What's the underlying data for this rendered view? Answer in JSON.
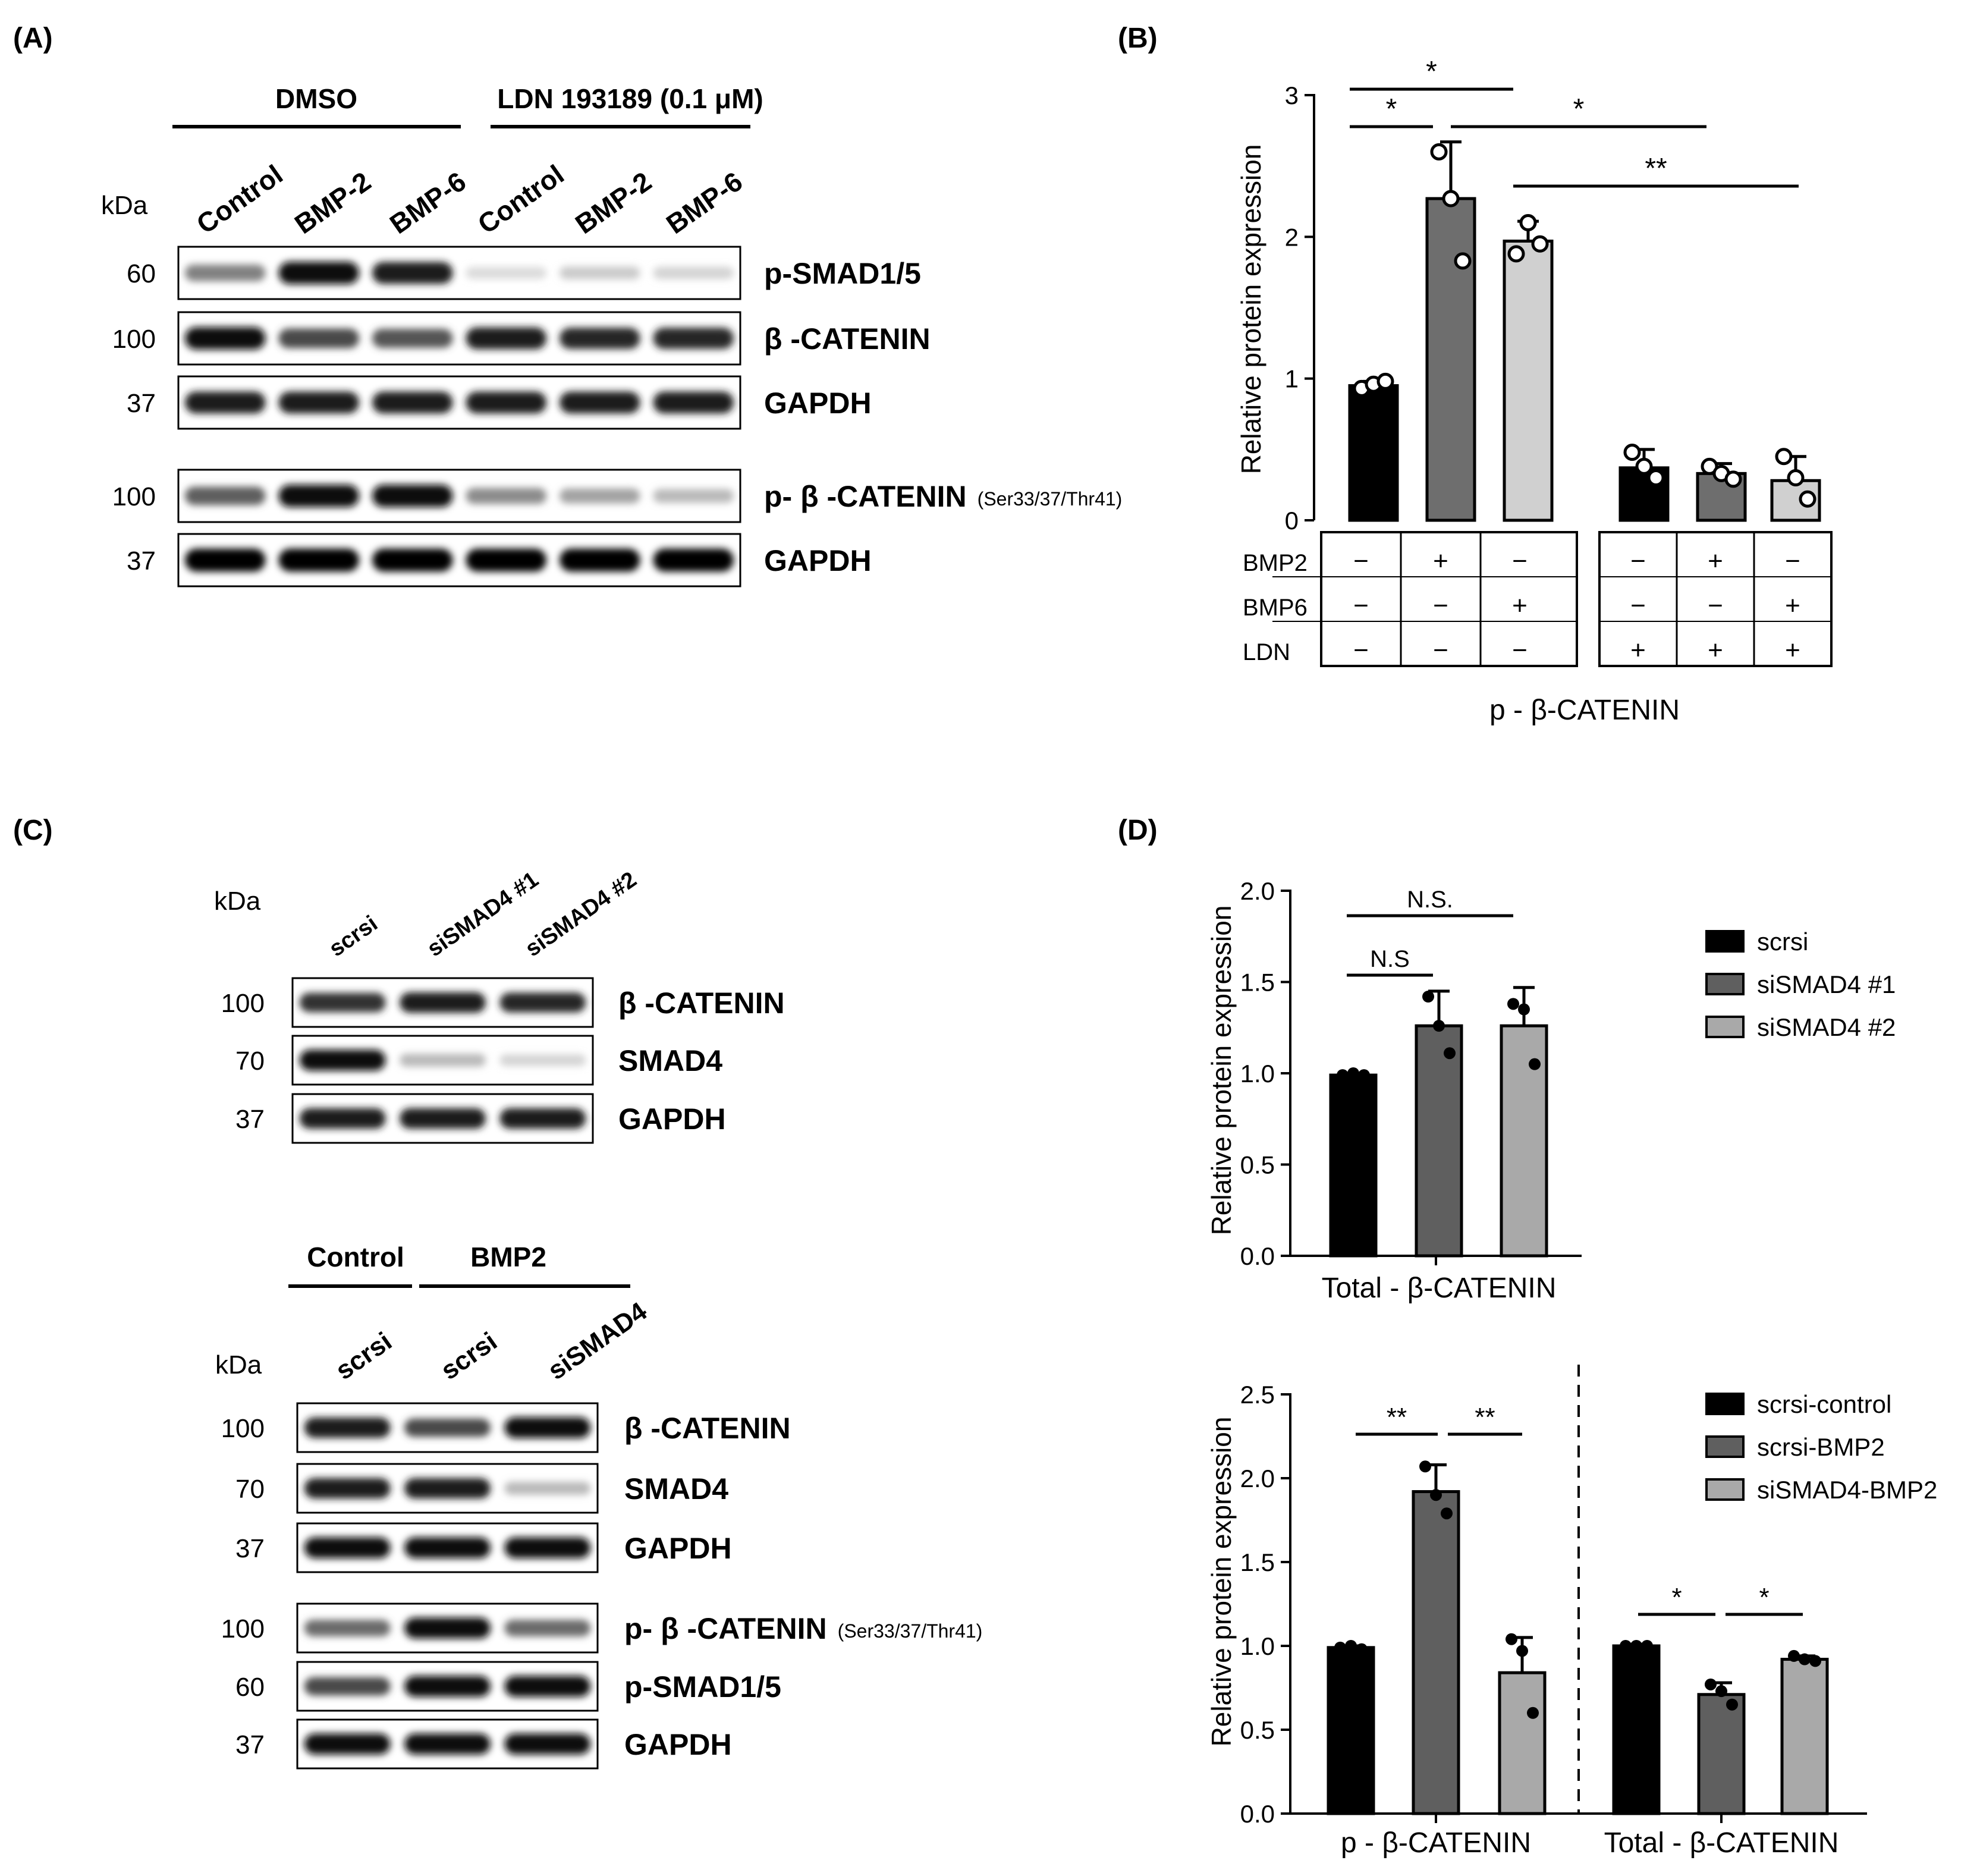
{
  "panels": {
    "A": {
      "letter": "(A)",
      "kda_label": "kDa",
      "groups": [
        "DMSO",
        "LDN 193189 (0.1 μM)"
      ],
      "lanes": [
        "Control",
        "BMP-2",
        "BMP-6",
        "Control",
        "BMP-2",
        "BMP-6"
      ],
      "blots": [
        {
          "kda": "60",
          "label": "p-SMAD1/5",
          "sub": "",
          "band": [
            0.45,
            0.95,
            0.9,
            0.05,
            0.12,
            0.08
          ]
        },
        {
          "kda": "100",
          "label": "β -CATENIN",
          "sub": "",
          "band": [
            0.95,
            0.7,
            0.65,
            0.9,
            0.85,
            0.85
          ]
        },
        {
          "kda": "37",
          "label": "GAPDH",
          "sub": "",
          "band": [
            0.9,
            0.9,
            0.9,
            0.9,
            0.9,
            0.9
          ]
        },
        {
          "kda": "100",
          "label": "p- β -CATENIN",
          "sub": "(Ser33/37/Thr41)",
          "band": [
            0.6,
            0.95,
            0.95,
            0.4,
            0.3,
            0.2
          ]
        },
        {
          "kda": "37",
          "label": "GAPDH",
          "sub": "",
          "band": [
            1.0,
            1.0,
            1.0,
            1.0,
            1.0,
            1.0
          ]
        }
      ]
    },
    "B": {
      "letter": "(B)",
      "table_rows": [
        {
          "label": "BMP2",
          "signs": [
            "−",
            "+",
            "−",
            "−",
            "+",
            "−"
          ]
        },
        {
          "label": "BMP6",
          "signs": [
            "−",
            "−",
            "+",
            "−",
            "−",
            "+"
          ]
        },
        {
          "label": "LDN",
          "signs": [
            "−",
            "−",
            "−",
            "+",
            "+",
            "+"
          ]
        }
      ],
      "significance": [
        "*",
        "*",
        "*",
        "**"
      ]
    },
    "C": {
      "letter": "(C)",
      "kda_label": "kDa",
      "top_lanes": [
        "scrsi",
        "siSMAD4 #1",
        "siSMAD4 #2"
      ],
      "top_blots": [
        {
          "kda": "100",
          "label": "β -CATENIN",
          "sub": "",
          "band": [
            0.8,
            0.9,
            0.85
          ]
        },
        {
          "kda": "70",
          "label": "SMAD4",
          "sub": "",
          "band": [
            0.95,
            0.2,
            0.08
          ]
        },
        {
          "kda": "37",
          "label": "GAPDH",
          "sub": "",
          "band": [
            0.9,
            0.9,
            0.9
          ]
        }
      ],
      "bottom_groups": [
        "Control",
        "BMP2"
      ],
      "bottom_lanes": [
        "scrsi",
        "scrsi",
        "siSMAD4"
      ],
      "bottom_blots": [
        {
          "kda": "100",
          "label": "β -CATENIN",
          "sub": "",
          "band": [
            0.9,
            0.7,
            0.95
          ]
        },
        {
          "kda": "70",
          "label": "SMAD4",
          "sub": "",
          "band": [
            0.9,
            0.9,
            0.2
          ]
        },
        {
          "kda": "37",
          "label": "GAPDH",
          "sub": "",
          "band": [
            0.95,
            0.95,
            0.95
          ]
        },
        {
          "kda": "100",
          "label": "p- β -CATENIN",
          "sub": "(Ser33/37/Thr41)",
          "band": [
            0.55,
            0.95,
            0.55
          ]
        },
        {
          "kda": "60",
          "label": "p-SMAD1/5",
          "sub": "",
          "band": [
            0.7,
            0.95,
            0.95
          ]
        },
        {
          "kda": "37",
          "label": "GAPDH",
          "sub": "",
          "band": [
            0.95,
            0.95,
            0.95
          ]
        }
      ]
    },
    "D": {
      "letter": "(D)",
      "top_significance": [
        "N.S.",
        "N.S"
      ],
      "bottom_significance": [
        "**",
        "**",
        "*",
        "*"
      ]
    }
  },
  "chart_data": [
    {
      "type": "bar",
      "panel": "B",
      "ylabel": "Relative protein expression",
      "xlabel": "p - β-CATENIN",
      "ylim": [
        0,
        3
      ],
      "yticks": [
        "0",
        "1",
        "2",
        "3"
      ],
      "bars": [
        {
          "value": 0.95,
          "error": 0.03,
          "color": "#000000",
          "points": [
            0.93,
            0.96,
            0.98
          ]
        },
        {
          "value": 2.27,
          "error": 0.4,
          "color": "#6e6e6e",
          "points": [
            2.6,
            2.27,
            1.83
          ]
        },
        {
          "value": 1.97,
          "error": 0.14,
          "color": "#d0d0d0",
          "points": [
            1.88,
            2.1,
            1.95
          ]
        },
        {
          "value": 0.37,
          "error": 0.13,
          "color": "#000000",
          "points": [
            0.48,
            0.38,
            0.3
          ]
        },
        {
          "value": 0.33,
          "error": 0.07,
          "color": "#6e6e6e",
          "points": [
            0.38,
            0.33,
            0.29
          ]
        },
        {
          "value": 0.28,
          "error": 0.17,
          "color": "#d0d0d0",
          "points": [
            0.45,
            0.3,
            0.15
          ]
        }
      ]
    },
    {
      "type": "bar",
      "panel": "D-top",
      "ylabel": "Relative protein expression",
      "xlabel": "Total - β-CATENIN",
      "ylim": [
        0,
        2.0
      ],
      "yticks": [
        "0.0",
        "0.5",
        "1.0",
        "1.5",
        "2.0"
      ],
      "legend": [
        "scrsi",
        "siSMAD4 #1",
        "siSMAD4 #2"
      ],
      "series": [
        {
          "name": "scrsi",
          "value": 0.99,
          "error": 0.01,
          "color": "#000000",
          "points": [
            0.99,
            1.0,
            0.99
          ]
        },
        {
          "name": "siSMAD4 #1",
          "value": 1.26,
          "error": 0.19,
          "color": "#5f5f5f",
          "points": [
            1.42,
            1.26,
            1.11
          ]
        },
        {
          "name": "siSMAD4 #2",
          "value": 1.26,
          "error": 0.21,
          "color": "#a9a9a9",
          "points": [
            1.38,
            1.35,
            1.05
          ]
        }
      ]
    },
    {
      "type": "bar",
      "panel": "D-bottom",
      "ylabel": "Relative protein expression",
      "ylim": [
        0,
        2.5
      ],
      "yticks": [
        "0.0",
        "0.5",
        "1.0",
        "1.5",
        "2.0",
        "2.5"
      ],
      "categories": [
        "p - β-CATENIN",
        "Total - β-CATENIN"
      ],
      "legend": [
        "scrsi-control",
        "scrsi-BMP2",
        "siSMAD4-BMP2"
      ],
      "series": [
        {
          "name": "scrsi-control",
          "color": "#000000",
          "values": [
            0.99,
            1.0
          ],
          "errors": [
            0.01,
            0.01
          ],
          "points": [
            [
              0.99,
              1.0,
              0.98
            ],
            [
              1.0,
              1.0,
              1.0
            ]
          ]
        },
        {
          "name": "scrsi-BMP2",
          "color": "#5f5f5f",
          "values": [
            1.92,
            0.71
          ],
          "errors": [
            0.16,
            0.07
          ],
          "points": [
            [
              2.07,
              1.9,
              1.79
            ],
            [
              0.77,
              0.73,
              0.65
            ]
          ]
        },
        {
          "name": "siSMAD4-BMP2",
          "color": "#a9a9a9",
          "values": [
            0.84,
            0.92
          ],
          "errors": [
            0.21,
            0.02
          ],
          "points": [
            [
              1.04,
              0.97,
              0.6
            ],
            [
              0.94,
              0.92,
              0.91
            ]
          ]
        }
      ]
    }
  ]
}
